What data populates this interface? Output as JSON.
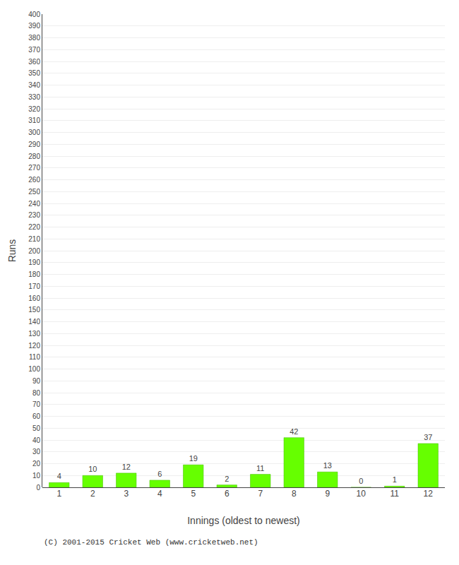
{
  "chart_data": {
    "type": "bar",
    "xlabel": "Innings (oldest to newest)",
    "ylabel": "Runs",
    "categories": [
      1,
      2,
      3,
      4,
      5,
      6,
      7,
      8,
      9,
      10,
      11,
      12
    ],
    "values": [
      4,
      10,
      12,
      6,
      19,
      2,
      11,
      42,
      13,
      0,
      1,
      37
    ],
    "color": "#66ff00",
    "ylim": [
      0,
      400
    ],
    "yticks": [
      0,
      10,
      20,
      30,
      40,
      50,
      60,
      70,
      80,
      90,
      100,
      110,
      120,
      130,
      140,
      150,
      160,
      170,
      180,
      190,
      200,
      210,
      220,
      230,
      240,
      250,
      260,
      270,
      280,
      290,
      300,
      310,
      320,
      330,
      340,
      350,
      360,
      370,
      380,
      390,
      400
    ],
    "grid": true,
    "data_labels": true,
    "annotations": [
      "(C) 2001-2015 Cricket Web (www.cricketweb.net)"
    ]
  }
}
